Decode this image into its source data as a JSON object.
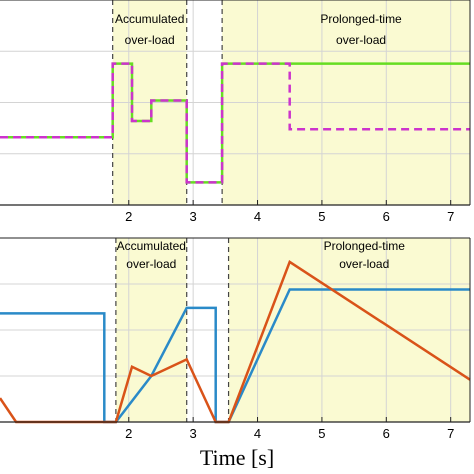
{
  "chart_data": [
    {
      "type": "line",
      "xlim": [
        0,
        7.3
      ],
      "ylim": [
        0,
        1
      ],
      "xticks": [
        2,
        3,
        4,
        5,
        6,
        7
      ],
      "grid": true,
      "series": [
        {
          "color": "#66dd22",
          "style": "solid",
          "x": [
            0,
            1.75,
            1.75,
            2.05,
            2.05,
            2.35,
            2.35,
            2.9,
            2.9,
            3.45,
            3.45,
            7.3
          ],
          "y": [
            0.33,
            0.33,
            0.69,
            0.69,
            0.41,
            0.41,
            0.51,
            0.51,
            0.11,
            0.11,
            0.69,
            0.69
          ]
        },
        {
          "color": "#cc33cc",
          "style": "dashed",
          "x": [
            0,
            1.75,
            1.75,
            2.05,
            2.05,
            2.35,
            2.35,
            2.9,
            2.9,
            3.45,
            3.45,
            4.5,
            4.5,
            7.3
          ],
          "y": [
            0.33,
            0.33,
            0.69,
            0.69,
            0.41,
            0.41,
            0.51,
            0.51,
            0.11,
            0.11,
            0.69,
            0.69,
            0.37,
            0.37
          ]
        }
      ],
      "regions": [
        {
          "label_lines": [
            "Accumulated",
            "over-load"
          ],
          "x_start": 1.75,
          "x_end": 2.9
        },
        {
          "label_lines": [
            "Prolonged-time",
            "over-load"
          ],
          "x_start": 3.45,
          "x_end": 7.3
        }
      ],
      "region_color": "#fafad2"
    },
    {
      "type": "line",
      "xlim": [
        0,
        7.3
      ],
      "ylim": [
        0,
        1
      ],
      "xticks": [
        2,
        3,
        4,
        5,
        6,
        7
      ],
      "xlabel": "Time [s]",
      "grid": true,
      "series": [
        {
          "color": "#2a8ac8",
          "style": "solid",
          "x": [
            0,
            1.62,
            1.62,
            1.8,
            2.35,
            2.9,
            2.9,
            3.35,
            3.35,
            3.55,
            4.5,
            7.3
          ],
          "y": [
            0.59,
            0.59,
            0.0,
            0.0,
            0.25,
            0.62,
            0.62,
            0.62,
            0.0,
            0.0,
            0.72,
            0.72
          ]
        },
        {
          "color": "#d95319",
          "style": "solid",
          "x": [
            0,
            0.25,
            0.45,
            1.62,
            1.8,
            2.05,
            2.35,
            2.9,
            3.35,
            3.55,
            4.5,
            7.3
          ],
          "y": [
            0.13,
            0.0,
            0.0,
            0.0,
            0.0,
            0.3,
            0.25,
            0.34,
            0.0,
            0.0,
            0.87,
            0.23
          ]
        }
      ],
      "regions": [
        {
          "label_lines": [
            "Accumulated",
            "over-load"
          ],
          "x_start": 1.8,
          "x_end": 2.9
        },
        {
          "label_lines": [
            "Prolonged-time",
            "over-load"
          ],
          "x_start": 3.55,
          "x_end": 7.3
        }
      ],
      "region_color": "#fafad2"
    }
  ]
}
